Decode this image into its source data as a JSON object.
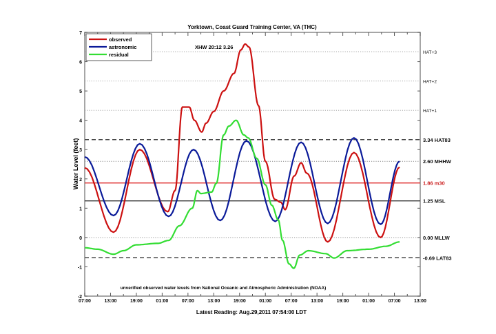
{
  "chart_data": {
    "type": "line",
    "title": "Yorktown, Coast Guard Training Center, VA (THC)",
    "xlabel": "Latest Reading: Aug.29,2011 07:54:00 LDT",
    "ylabel": "Water Level (feet)",
    "annotation": "XHW 20:12 3.26",
    "note": "unverified observed water levels from National Oceanic and Atmospheric Administration (NOAA)",
    "xlim_hours": [
      0,
      78
    ],
    "ylim": [
      -2,
      7
    ],
    "y_ticks": [
      "-2",
      "-1",
      "0",
      "1",
      "2",
      "3",
      "4",
      "5",
      "6",
      "7"
    ],
    "x_tick_labels": [
      "07:00",
      "13:00",
      "19:00",
      "01:00",
      "07:00",
      "13:00",
      "19:00",
      "01:00",
      "07:00",
      "13:00",
      "19:00",
      "01:00",
      "07:00",
      "13:00"
    ],
    "legend": {
      "position": "top-left",
      "entries": [
        {
          "label": "observed",
          "color": "#cc1111"
        },
        {
          "label": "astronomic",
          "color": "#0a1a99"
        },
        {
          "label": "residual",
          "color": "#33dd33"
        }
      ]
    },
    "reference_lines": [
      {
        "label": "HAT+3",
        "value": 6.34,
        "style": "dotted",
        "color": "#999999"
      },
      {
        "label": "HAT+2",
        "value": 5.34,
        "style": "dotted",
        "color": "#999999"
      },
      {
        "label": "HAT+1",
        "value": 4.34,
        "style": "dotted",
        "color": "#999999"
      },
      {
        "label": "3.34 HAT83",
        "value": 3.34,
        "style": "dashed",
        "color": "#444444"
      },
      {
        "label": "2.60 MHHW",
        "value": 2.6,
        "style": "dotted",
        "color": "#888888"
      },
      {
        "label": "1.86 m30",
        "value": 1.86,
        "style": "solid",
        "color": "#dd2222"
      },
      {
        "label": "1.25 MSL",
        "value": 1.25,
        "style": "solid",
        "color": "#333333"
      },
      {
        "label": "0.00 MLLW",
        "value": 0.0,
        "style": "dotted",
        "color": "#888888"
      },
      {
        "label": "-0.69 LAT83",
        "value": -0.69,
        "style": "dashed",
        "color": "#444444"
      }
    ],
    "series": [
      {
        "name": "observed",
        "color": "#cc1111",
        "points_hours_feet": [
          [
            0,
            2.38
          ],
          [
            6.7,
            0.18
          ],
          [
            12.8,
            3.0
          ],
          [
            19.3,
            0.88
          ],
          [
            21,
            1.6
          ],
          [
            22.7,
            4.45
          ],
          [
            24.3,
            4.45
          ],
          [
            25.5,
            4.0
          ],
          [
            27.2,
            3.6
          ],
          [
            28.2,
            3.9
          ],
          [
            30,
            4.3
          ],
          [
            32.3,
            5.0
          ],
          [
            34.7,
            5.6
          ],
          [
            36.3,
            6.4
          ],
          [
            37.3,
            6.6
          ],
          [
            38.2,
            6.5
          ],
          [
            40.4,
            4.5
          ],
          [
            42,
            2.6
          ],
          [
            44.2,
            1.3
          ],
          [
            45.6,
            1.2
          ],
          [
            46.6,
            0.95
          ],
          [
            48.7,
            2.1
          ],
          [
            50.3,
            2.55
          ],
          [
            51.6,
            2.2
          ],
          [
            56.5,
            -0.15
          ],
          [
            62.6,
            2.9
          ],
          [
            68.8,
            0.0
          ],
          [
            73.2,
            2.4
          ]
        ]
      },
      {
        "name": "astronomic",
        "color": "#0a1a99",
        "points_hours_feet": [
          [
            0,
            2.75
          ],
          [
            6.7,
            0.75
          ],
          [
            12.8,
            3.2
          ],
          [
            19.5,
            0.72
          ],
          [
            25.3,
            3.0
          ],
          [
            31.5,
            0.58
          ],
          [
            37.6,
            3.3
          ],
          [
            44.3,
            0.55
          ],
          [
            50.3,
            3.25
          ],
          [
            56.5,
            0.48
          ],
          [
            62.6,
            3.4
          ],
          [
            68.8,
            0.45
          ],
          [
            73.2,
            2.6
          ]
        ]
      },
      {
        "name": "residual",
        "color": "#33dd33",
        "points_hours_feet": [
          [
            0,
            -0.35
          ],
          [
            3,
            -0.4
          ],
          [
            6.7,
            -0.57
          ],
          [
            9,
            -0.45
          ],
          [
            12,
            -0.25
          ],
          [
            17,
            -0.2
          ],
          [
            19.5,
            -0.1
          ],
          [
            22,
            0.4
          ],
          [
            25,
            1.0
          ],
          [
            26.2,
            1.6
          ],
          [
            27,
            1.5
          ],
          [
            29.5,
            1.55
          ],
          [
            30.6,
            1.85
          ],
          [
            32.3,
            3.5
          ],
          [
            33.5,
            3.8
          ],
          [
            35.2,
            4.0
          ],
          [
            37,
            3.5
          ],
          [
            38,
            3.4
          ],
          [
            40,
            2.7
          ],
          [
            42,
            1.8
          ],
          [
            43.5,
            1.1
          ],
          [
            45,
            0.6
          ],
          [
            46,
            -0.1
          ],
          [
            47.5,
            -0.9
          ],
          [
            48.6,
            -1.05
          ],
          [
            50,
            -0.6
          ],
          [
            52,
            -0.45
          ],
          [
            56,
            -0.55
          ],
          [
            58,
            -0.7
          ],
          [
            61,
            -0.45
          ],
          [
            66,
            -0.4
          ],
          [
            70,
            -0.3
          ],
          [
            73.2,
            -0.15
          ]
        ]
      }
    ]
  }
}
